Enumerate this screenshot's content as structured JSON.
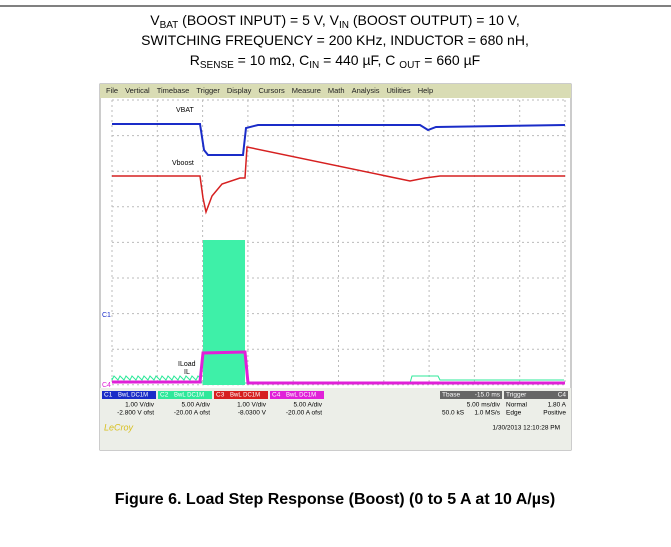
{
  "conditions": [
    [
      {
        "text": "V"
      },
      {
        "text": "BAT",
        "sub": true
      },
      {
        "text": " (BOOST INPUT) = 5 V, V"
      },
      {
        "text": "IN",
        "sub": true
      },
      {
        "text": " (BOOST OUTPUT) = 10 V,"
      }
    ],
    [
      {
        "text": "SWITCHING FREQUENCY = 200 KHz, INDUCTOR = 680 nH,"
      }
    ],
    [
      {
        "text": "R"
      },
      {
        "text": "SENSE",
        "sub": true
      },
      {
        "text": " = 10 mΩ, C"
      },
      {
        "text": "IN",
        "sub": true
      },
      {
        "text": " = 440 µF, C "
      },
      {
        "text": "OUT",
        "sub": true
      },
      {
        "text": " = 660 µF"
      }
    ]
  ],
  "menu": [
    "File",
    "Vertical",
    "Timebase",
    "Trigger",
    "Display",
    "Cursors",
    "Measure",
    "Math",
    "Analysis",
    "Utilities",
    "Help"
  ],
  "trace_labels": {
    "vbat": "VBAT",
    "vboost": "Vboost",
    "iload": "ILoad",
    "il": "IL",
    "c1": "C1",
    "c4": "C4"
  },
  "channels": [
    {
      "name": "C1",
      "mode": "BwL DC1M",
      "scale": "1.00 V/div",
      "offset": "-2.800 V ofst"
    },
    {
      "name": "C2",
      "mode": "BwL DC1M",
      "scale": "5.00 A/div",
      "offset": "-20.00 A ofst"
    },
    {
      "name": "C3",
      "mode": "BwL DC1M",
      "scale": "1.00 V/div",
      "offset": "-8.0300 V"
    },
    {
      "name": "C4",
      "mode": "BwL DC1M",
      "scale": "5.00 A/div",
      "offset": "-20.00 A ofst"
    }
  ],
  "timebase": {
    "label": "Tbase",
    "delay": "-15.0 ms",
    "scale": "5.00 ms/div",
    "samples": "50.0 kS",
    "rate": "1.0 MS/s"
  },
  "trigger": {
    "label": "Trigger",
    "source": "C4",
    "mode": "Normal",
    "level": "1.80 A",
    "type": "Edge",
    "slope": "Positive"
  },
  "brand": "LeCroy",
  "timestamp": "1/30/2013 12:10:28 PM",
  "caption": "Figure 6. Load Step Response (Boost) (0 to 5 A at 10 A/µs)"
}
